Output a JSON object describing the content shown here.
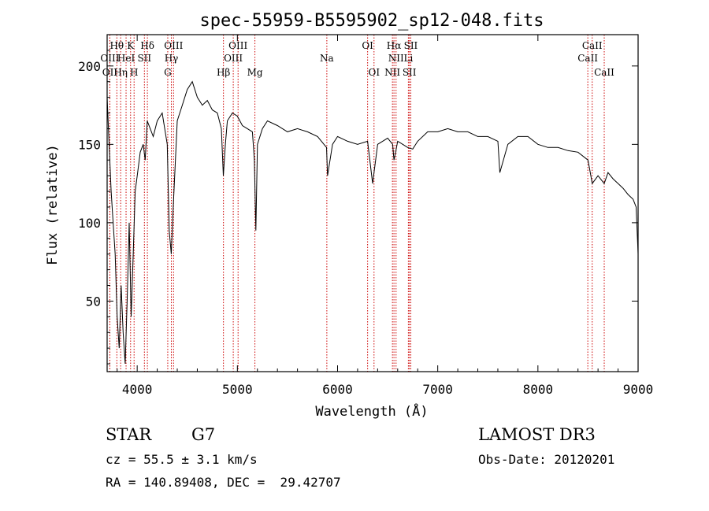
{
  "chart_data": {
    "type": "line",
    "title": "spec-55959-B5595902_sp12-048.fits",
    "xlabel": "Wavelength (Å)",
    "ylabel": "Flux (relative)",
    "xlim": [
      3700,
      9000
    ],
    "ylim": [
      5,
      220
    ],
    "x_ticks": [
      4000,
      5000,
      6000,
      7000,
      8000,
      9000
    ],
    "y_ticks": [
      50,
      100,
      150,
      200
    ],
    "grid": false,
    "line_color": "#000000",
    "marker_color": "#cc0000",
    "series": [
      {
        "x": [
          3700,
          3720,
          3740,
          3760,
          3780,
          3800,
          3820,
          3840,
          3860,
          3880,
          3900,
          3920,
          3940,
          3960,
          3980,
          4000,
          4030,
          4060,
          4080,
          4100,
          4130,
          4160,
          4200,
          4250,
          4300,
          4320,
          4340,
          4360,
          4400,
          4450,
          4500,
          4550,
          4600,
          4650,
          4700,
          4750,
          4800,
          4840,
          4860,
          4880,
          4900,
          4950,
          5000,
          5050,
          5100,
          5150,
          5170,
          5185,
          5200,
          5250,
          5300,
          5400,
          5500,
          5600,
          5700,
          5800,
          5890,
          5900,
          5950,
          6000,
          6100,
          6200,
          6300,
          6350,
          6400,
          6450,
          6500,
          6550,
          6563,
          6580,
          6600,
          6650,
          6700,
          6750,
          6800,
          6900,
          7000,
          7100,
          7200,
          7300,
          7400,
          7500,
          7600,
          7620,
          7700,
          7800,
          7900,
          8000,
          8100,
          8200,
          8300,
          8400,
          8500,
          8542,
          8600,
          8662,
          8700,
          8750,
          8800,
          8850,
          8900,
          8950,
          8980,
          9000
        ],
        "y": [
          180,
          150,
          120,
          100,
          80,
          40,
          20,
          60,
          30,
          10,
          50,
          100,
          40,
          80,
          120,
          130,
          145,
          150,
          140,
          165,
          160,
          155,
          165,
          170,
          150,
          95,
          80,
          110,
          165,
          175,
          185,
          190,
          180,
          175,
          178,
          172,
          170,
          160,
          130,
          150,
          165,
          170,
          168,
          162,
          160,
          158,
          140,
          95,
          150,
          160,
          165,
          162,
          158,
          160,
          158,
          155,
          148,
          130,
          150,
          155,
          152,
          150,
          152,
          125,
          150,
          152,
          154,
          150,
          140,
          145,
          152,
          150,
          148,
          147,
          152,
          158,
          158,
          160,
          158,
          158,
          155,
          155,
          152,
          132,
          150,
          155,
          155,
          150,
          148,
          148,
          146,
          145,
          140,
          125,
          130,
          125,
          132,
          128,
          125,
          122,
          118,
          115,
          110,
          80
        ]
      }
    ],
    "line_markers": [
      {
        "label": "OII",
        "x": 3727,
        "row": 2
      },
      {
        "label": "OIII",
        "x": 3727,
        "row": 1
      },
      {
        "label": "Hθ",
        "x": 3797,
        "row": 0
      },
      {
        "label": "Hη",
        "x": 3835,
        "row": 2
      },
      {
        "label": "HeI",
        "x": 3889,
        "row": 1
      },
      {
        "label": "K",
        "x": 3934,
        "row": 0
      },
      {
        "label": "SII",
        "x": 4072,
        "row": 1
      },
      {
        "label": "H",
        "x": 3969,
        "row": 2
      },
      {
        "label": "Hδ",
        "x": 4102,
        "row": 0
      },
      {
        "label": "OIII",
        "x": 4363,
        "row": 0
      },
      {
        "label": "Hγ",
        "x": 4341,
        "row": 1
      },
      {
        "label": "G",
        "x": 4305,
        "row": 2
      },
      {
        "label": "Hβ",
        "x": 4861,
        "row": 2
      },
      {
        "label": "OIII",
        "x": 5007,
        "row": 0
      },
      {
        "label": "OIII",
        "x": 4959,
        "row": 1
      },
      {
        "label": "Mg",
        "x": 5175,
        "row": 2
      },
      {
        "label": "Na",
        "x": 5893,
        "row": 1
      },
      {
        "label": "OI",
        "x": 6300,
        "row": 0
      },
      {
        "label": "OI",
        "x": 6364,
        "row": 2
      },
      {
        "label": "Hα",
        "x": 6563,
        "row": 0
      },
      {
        "label": "NII",
        "x": 6584,
        "row": 1
      },
      {
        "label": "NII",
        "x": 6548,
        "row": 2
      },
      {
        "label": "SII",
        "x": 6731,
        "row": 0
      },
      {
        "label": "Li",
        "x": 6707,
        "row": 1
      },
      {
        "label": "SII",
        "x": 6717,
        "row": 2
      },
      {
        "label": "CaII",
        "x": 8542,
        "row": 0
      },
      {
        "label": "CaII",
        "x": 8498,
        "row": 1
      },
      {
        "label": "CaII",
        "x": 8662,
        "row": 2
      }
    ]
  },
  "info": {
    "class_label": "STAR",
    "subclass": "G7",
    "survey": "LAMOST DR3",
    "cz_line": "cz = 55.5 ± 3.1 km/s",
    "obs_date_line": "Obs-Date: 20120201",
    "radec_line": "RA = 140.89408, DEC =  29.42707"
  }
}
